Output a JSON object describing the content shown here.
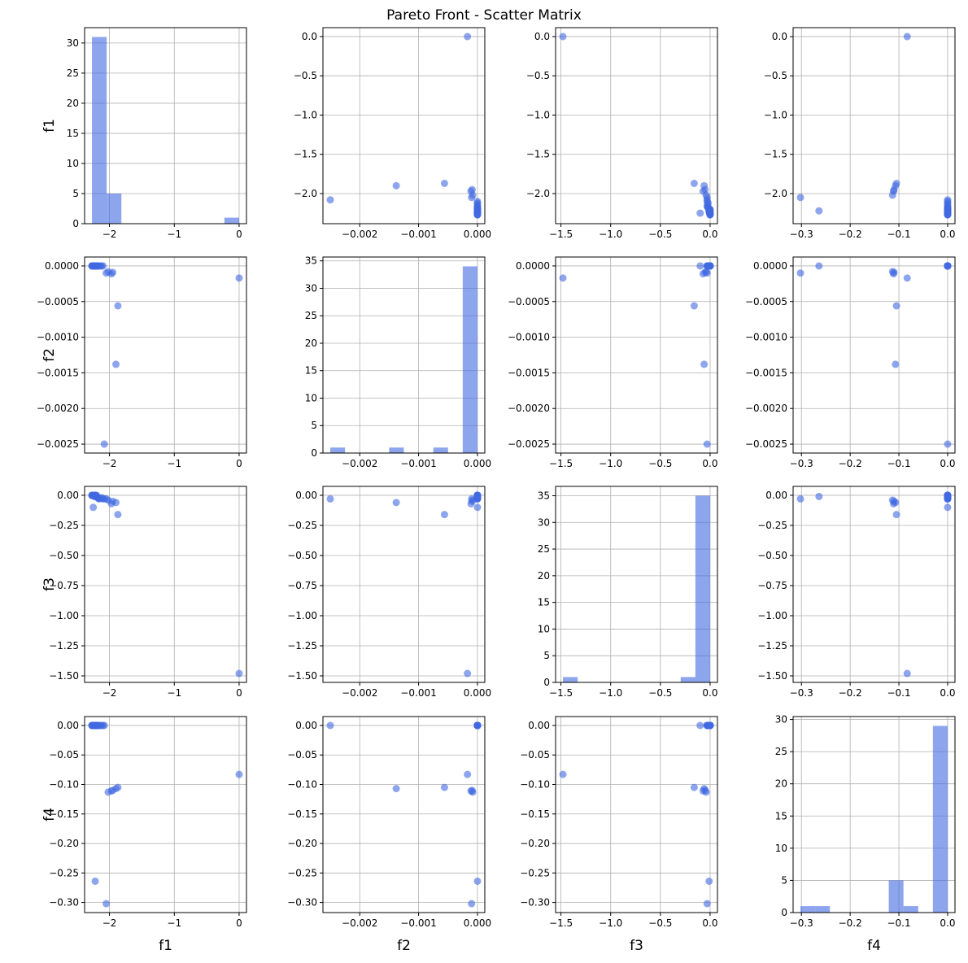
{
  "chart_data": {
    "type": "scatter_matrix",
    "title": "Pareto Front - Scatter Matrix",
    "color": "#4169e1",
    "grid": true,
    "variables": [
      {
        "name": "f1",
        "values": [
          0,
          -2.08,
          -1.9,
          -1.87,
          -2.05,
          -2.22,
          -2.25,
          -1.95,
          -1.97,
          -2.02,
          -2.27,
          -2.26,
          -2.25,
          -2.24,
          -2.23,
          -2.22,
          -2.21,
          -2.2,
          -2.19,
          -2.18,
          -2.17,
          -2.16,
          -2.27,
          -2.25,
          -2.23,
          -2.21,
          -2.19,
          -2.26,
          -2.24,
          -2.22,
          -2.2,
          -2.12,
          -2.1,
          -2.14,
          -2.27,
          -2.24,
          -2.21
        ],
        "xlim": [
          -2.3835,
          0.1135
        ],
        "xticks": [
          {
            "value": -2,
            "label": "−2"
          },
          {
            "value": -1,
            "label": "−1"
          },
          0
        ],
        "ylim": [
          -2.3835,
          0.1135
        ],
        "yticks": [
          {
            "value": 0,
            "label": "0.0"
          },
          {
            "value": -0.5,
            "label": "−0.5"
          },
          {
            "value": -1,
            "label": "−1.0"
          },
          {
            "value": -1.5,
            "label": "−1.5"
          },
          {
            "value": -2,
            "label": "−2.0"
          }
        ],
        "hist": {
          "bins": [
            -2.27,
            -2.043,
            -1.816,
            -1.589,
            -1.362,
            -1.135,
            -0.908,
            -0.681,
            -0.454,
            -0.227,
            0
          ],
          "counts": [
            31,
            5,
            0,
            0,
            0,
            0,
            0,
            0,
            0,
            1
          ],
          "ylim": [
            0,
            32.55
          ],
          "yticks": [
            0,
            5,
            10,
            15,
            20,
            25,
            30
          ]
        }
      },
      {
        "name": "f2",
        "values": [
          -0.00017,
          -0.0025,
          -0.00138,
          -0.00056,
          -0.0001,
          0,
          0,
          -9e-05,
          -0.00011,
          -8e-05,
          0,
          0,
          0,
          0,
          0,
          0,
          0,
          0,
          0,
          0,
          0,
          0,
          0,
          0,
          0,
          0,
          0,
          0,
          0,
          0,
          0,
          0,
          0,
          0,
          0,
          0,
          0
        ],
        "xlim": [
          -0.002625,
          0.000125
        ],
        "xticks": [
          {
            "value": -0.002,
            "label": "−0.002"
          },
          {
            "value": -0.001,
            "label": "−0.001"
          },
          {
            "value": 0,
            "label": "0.000"
          }
        ],
        "ylim": [
          -0.002625,
          0.000125
        ],
        "yticks": [
          {
            "value": 0,
            "label": "0.0000"
          },
          {
            "value": -0.0005,
            "label": "−0.0005"
          },
          {
            "value": -0.001,
            "label": "−0.0010"
          },
          {
            "value": -0.0015,
            "label": "−0.0015"
          },
          {
            "value": -0.002,
            "label": "−0.0020"
          },
          {
            "value": -0.0025,
            "label": "−0.0025"
          }
        ],
        "hist": {
          "bins": [
            -0.0025,
            -0.00225,
            -0.002,
            -0.00175,
            -0.0015,
            -0.00125,
            -0.001,
            -0.00075,
            -0.0005,
            -0.00025,
            0
          ],
          "counts": [
            1,
            0,
            0,
            0,
            1,
            0,
            0,
            1,
            0,
            34
          ],
          "ylim": [
            0,
            35.7
          ],
          "yticks": [
            0,
            5,
            10,
            15,
            20,
            25,
            30,
            35
          ]
        }
      },
      {
        "name": "f3",
        "values": [
          -1.48,
          -0.03,
          -0.06,
          -0.16,
          -0.03,
          -0.01,
          -0.1,
          -0.05,
          -0.07,
          -0.04,
          0,
          -0.002,
          -0.005,
          0,
          -0.01,
          -0.003,
          0,
          -0.008,
          -0.015,
          -0.02,
          -0.025,
          -0.03,
          0,
          -0.004,
          0,
          -0.006,
          -0.012,
          0,
          -0.002,
          -0.007,
          0,
          -0.02,
          -0.03,
          -0.025,
          -0.001,
          0,
          -0.003
        ],
        "xlim": [
          -1.554,
          0.074
        ],
        "xticks": [
          {
            "value": -1.5,
            "label": "−1.5"
          },
          {
            "value": -1,
            "label": "−1.0"
          },
          {
            "value": -0.5,
            "label": "−0.5"
          },
          {
            "value": 0,
            "label": "0.0"
          }
        ],
        "ylim": [
          -1.554,
          0.074
        ],
        "yticks": [
          {
            "value": 0,
            "label": "0.00"
          },
          {
            "value": -0.25,
            "label": "−0.25"
          },
          {
            "value": -0.5,
            "label": "−0.50"
          },
          {
            "value": -0.75,
            "label": "−0.75"
          },
          {
            "value": -1,
            "label": "−1.00"
          },
          {
            "value": -1.25,
            "label": "−1.25"
          },
          {
            "value": -1.5,
            "label": "−1.50"
          }
        ],
        "hist": {
          "bins": [
            -1.48,
            -1.332,
            -1.184,
            -1.036,
            -0.888,
            -0.74,
            -0.592,
            -0.444,
            -0.296,
            -0.148,
            0
          ],
          "counts": [
            1,
            0,
            0,
            0,
            0,
            0,
            0,
            0,
            1,
            35
          ],
          "ylim": [
            0,
            36.75
          ],
          "yticks": [
            0,
            5,
            10,
            15,
            20,
            25,
            30,
            35
          ]
        }
      },
      {
        "name": "f4",
        "values": [
          -0.083,
          0,
          -0.107,
          -0.105,
          -0.302,
          -0.264,
          0,
          -0.11,
          -0.111,
          -0.113,
          0,
          0,
          0,
          0,
          0,
          0,
          0,
          0,
          0,
          0,
          0,
          0,
          0,
          0,
          0,
          0,
          0,
          0,
          0,
          0,
          0,
          0,
          0,
          0,
          0,
          0,
          0
        ],
        "xlim": [
          -0.3171,
          0.0151
        ],
        "xticks": [
          {
            "value": -0.3,
            "label": "−0.3"
          },
          {
            "value": -0.2,
            "label": "−0.2"
          },
          {
            "value": -0.1,
            "label": "−0.1"
          },
          {
            "value": 0,
            "label": "0.0"
          }
        ],
        "ylim": [
          -0.3171,
          0.0151
        ],
        "yticks": [
          {
            "value": 0,
            "label": "0.00"
          },
          {
            "value": -0.05,
            "label": "−0.05"
          },
          {
            "value": -0.1,
            "label": "−0.10"
          },
          {
            "value": -0.15,
            "label": "−0.15"
          },
          {
            "value": -0.2,
            "label": "−0.20"
          },
          {
            "value": -0.25,
            "label": "−0.25"
          },
          {
            "value": -0.3,
            "label": "−0.30"
          }
        ],
        "hist": {
          "bins": [
            -0.302,
            -0.2718,
            -0.2416,
            -0.2114,
            -0.1812,
            -0.151,
            -0.1208,
            -0.0906,
            -0.0604,
            -0.0302,
            0
          ],
          "counts": [
            1,
            1,
            0,
            0,
            0,
            0,
            5,
            1,
            0,
            29
          ],
          "ylim": [
            0,
            30.45
          ],
          "yticks": [
            0,
            5,
            10,
            15,
            20,
            25,
            30
          ]
        }
      }
    ]
  }
}
